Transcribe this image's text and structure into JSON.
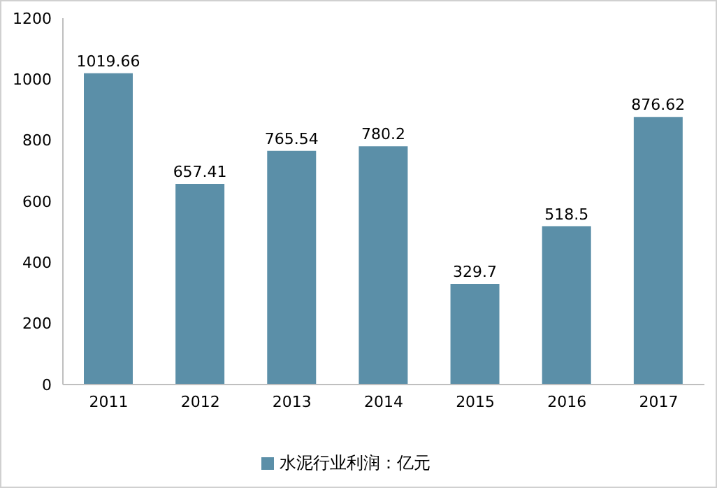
{
  "chart_data": {
    "type": "bar",
    "categories": [
      "2011",
      "2012",
      "2013",
      "2014",
      "2015",
      "2016",
      "2017"
    ],
    "series": [
      {
        "name": "水泥行业利润：亿元",
        "color": "#5b8fa8",
        "values": [
          1019.66,
          657.41,
          765.54,
          780.2,
          329.7,
          518.5,
          876.62
        ]
      }
    ],
    "ylim": [
      0,
      1200
    ],
    "yticks": [
      0,
      200,
      400,
      600,
      800,
      1000,
      1200
    ],
    "data_labels": true,
    "legend": "bottom",
    "grid": false
  }
}
